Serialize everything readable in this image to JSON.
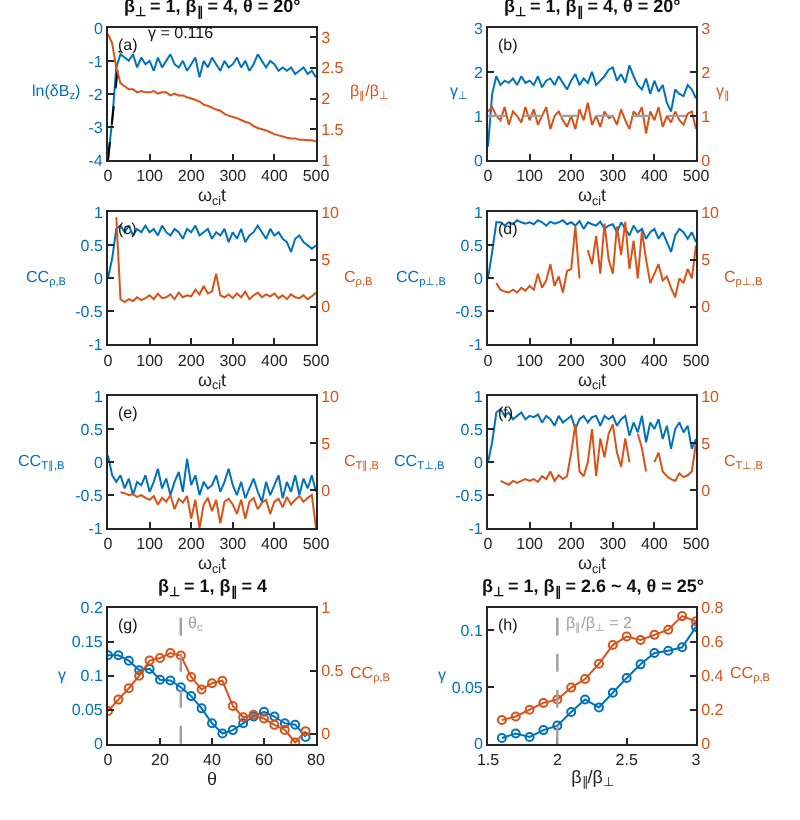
{
  "chart_data": [
    {
      "type": "line",
      "title": "β$_{⊥}$ = 1, β$_{∥}$ = 4, θ = 20°",
      "xlabel": "ω$_{ci}$t",
      "ylabel": "ln(δB$_{z}$)",
      "y2label": "β$_{∥}$/β$_{⊥}$",
      "annotations": [
        "(a)",
        {
          "text": "γ = 0.116",
          "x": 28,
          "y": -0.7
        }
      ],
      "x": [
        0,
        10,
        20,
        30,
        40,
        50,
        60,
        70,
        80,
        90,
        100,
        110,
        120,
        130,
        140,
        150,
        160,
        170,
        180,
        190,
        200,
        210,
        220,
        230,
        240,
        250,
        260,
        270,
        280,
        290,
        300,
        310,
        320,
        330,
        340,
        350,
        360,
        370,
        380,
        390,
        400,
        410,
        420,
        430,
        440,
        450,
        460,
        470,
        480,
        490,
        500
      ],
      "xlim": [
        0,
        500
      ],
      "xticks": [
        0,
        100,
        200,
        300,
        400,
        500
      ],
      "ylim": [
        -4,
        0
      ],
      "yticks": [
        -4,
        -3,
        -2,
        -1,
        0
      ],
      "y2lim": [
        1,
        3.15
      ],
      "y2ticks": [
        1,
        1.5,
        2,
        2.5,
        3
      ],
      "marker": "none",
      "line_style": "solid",
      "series": [
        {
          "color": "#0072bd",
          "values": [
            -4,
            -2.8,
            -1.2,
            -0.8,
            -0.9,
            -1.0,
            -0.8,
            -1.2,
            -0.9,
            -1.1,
            -1.0,
            -1.3,
            -0.9,
            -1.2,
            -1.0,
            -0.8,
            -1.1,
            -1.2,
            -1.0,
            -1.3,
            -1.1,
            -0.9,
            -1.5,
            -1.0,
            -1.2,
            -0.9,
            -1.1,
            -1.3,
            -1.0,
            -1.2,
            -1.1,
            -0.9,
            -1.2,
            -1.0,
            -1.3,
            -1.1,
            -0.8,
            -1.0,
            -1.2,
            -1.0,
            -1.1,
            -1.3,
            -1.2,
            -1.3,
            -1.2,
            -1.4,
            -1.3,
            -1.2,
            -1.4,
            -1.3,
            -1.5
          ]
        },
        {
          "color": "#d95319",
          "axis": "y2",
          "values": [
            3.05,
            2.9,
            2.5,
            2.25,
            2.2,
            2.15,
            2.15,
            2.1,
            2.12,
            2.1,
            2.1,
            2.12,
            2.08,
            2.1,
            2.1,
            2.05,
            2.08,
            2.05,
            2.05,
            2.02,
            2.0,
            1.98,
            1.95,
            1.9,
            1.88,
            1.85,
            1.82,
            1.8,
            1.75,
            1.72,
            1.7,
            1.68,
            1.65,
            1.62,
            1.6,
            1.55,
            1.52,
            1.5,
            1.48,
            1.45,
            1.42,
            1.4,
            1.38,
            1.36,
            1.35,
            1.35,
            1.33,
            1.33,
            1.32,
            1.32,
            1.3
          ]
        },
        {
          "type": "line",
          "color": "#000000",
          "line_style": "dashed",
          "x": [
            0,
            28
          ],
          "values": [
            -4,
            -0.7
          ]
        }
      ]
    },
    {
      "type": "line",
      "title": "β$_{⊥}$ = 1, β$_{∥}$ = 4, θ = 20°",
      "xlabel": "ω$_{ci}$t",
      "ylabel": "γ$_{⊥}$",
      "y2label": "γ$_{∥}$",
      "annotations": [
        "(b)"
      ],
      "x": [
        0,
        10,
        20,
        30,
        40,
        50,
        60,
        70,
        80,
        90,
        100,
        110,
        120,
        130,
        140,
        150,
        160,
        170,
        180,
        190,
        200,
        210,
        220,
        230,
        240,
        250,
        260,
        270,
        280,
        290,
        300,
        310,
        320,
        330,
        340,
        350,
        360,
        370,
        380,
        390,
        400,
        410,
        420,
        430,
        440,
        450,
        460,
        470,
        480,
        490,
        500
      ],
      "xlim": [
        0,
        500
      ],
      "xticks": [
        0,
        100,
        200,
        300,
        400,
        500
      ],
      "ylim": [
        0,
        3
      ],
      "yticks": [
        0,
        1,
        2,
        3
      ],
      "y2lim": [
        0,
        3
      ],
      "y2ticks": [
        0,
        1,
        2,
        3
      ],
      "marker": "none",
      "line_style": "solid",
      "ref_lines": [
        {
          "axis": "y",
          "value": 1,
          "color": "#a0a0a0",
          "line_style": "dashed"
        }
      ],
      "series": [
        {
          "color": "#0072bd",
          "values": [
            0.3,
            1.5,
            1.9,
            1.7,
            1.8,
            1.75,
            1.85,
            1.7,
            1.9,
            1.75,
            1.8,
            1.7,
            1.9,
            1.65,
            1.8,
            1.85,
            1.7,
            1.9,
            1.75,
            1.6,
            1.8,
            1.95,
            1.7,
            1.85,
            1.75,
            2.0,
            1.7,
            1.8,
            1.9,
            2.05,
            2.1,
            1.8,
            1.95,
            1.75,
            2.15,
            1.9,
            1.7,
            1.6,
            1.85,
            1.5,
            1.8,
            1.55,
            1.7,
            1.3,
            1.1,
            1.6,
            1.5,
            1.45,
            1.7,
            1.6,
            1.4
          ]
        },
        {
          "color": "#d95319",
          "axis": "y2",
          "values": [
            1.1,
            1.2,
            1.0,
            0.9,
            1.2,
            0.8,
            1.1,
            1.0,
            0.85,
            1.2,
            0.9,
            1.15,
            0.8,
            1.0,
            1.2,
            0.7,
            1.0,
            1.1,
            0.9,
            0.75,
            1.0,
            0.7,
            1.15,
            0.9,
            1.3,
            0.8,
            1.0,
            0.75,
            1.1,
            0.95,
            1.0,
            0.8,
            1.15,
            0.9,
            0.7,
            1.1,
            1.0,
            1.2,
            0.6,
            1.1,
            0.9,
            1.2,
            0.75,
            1.0,
            0.85,
            1.1,
            0.9,
            0.8,
            1.05,
            1.1,
            0.7
          ]
        }
      ]
    },
    {
      "type": "line",
      "xlabel": "ω$_{ci}$t",
      "ylabel": "CC$_{ρ,B}$",
      "y2label": "C$_{ρ,B}$",
      "annotations": [
        "(c)"
      ],
      "x": [
        0,
        10,
        20,
        30,
        40,
        50,
        60,
        70,
        80,
        90,
        100,
        110,
        120,
        130,
        140,
        150,
        160,
        170,
        180,
        190,
        200,
        210,
        220,
        230,
        240,
        250,
        260,
        270,
        280,
        290,
        300,
        310,
        320,
        330,
        340,
        350,
        360,
        370,
        380,
        390,
        400,
        410,
        420,
        430,
        440,
        450,
        460,
        470,
        480,
        490,
        500
      ],
      "xlim": [
        0,
        500
      ],
      "xticks": [
        0,
        100,
        200,
        300,
        400,
        500
      ],
      "ylim": [
        -1,
        1
      ],
      "yticks": [
        -1,
        -0.5,
        0,
        0.5,
        1
      ],
      "y2lim": [
        -4,
        10
      ],
      "y2ticks": [
        0,
        5,
        10
      ],
      "marker": "none",
      "line_style": "solid",
      "series": [
        {
          "color": "#0072bd",
          "values": [
            0,
            0.3,
            0.75,
            0.8,
            0.7,
            0.8,
            0.65,
            0.75,
            0.7,
            0.8,
            0.7,
            0.75,
            0.65,
            0.8,
            0.7,
            0.65,
            0.75,
            0.7,
            0.6,
            0.75,
            0.7,
            0.8,
            0.65,
            0.7,
            0.75,
            0.6,
            0.7,
            0.65,
            0.75,
            0.55,
            0.7,
            0.6,
            0.75,
            0.55,
            0.65,
            0.7,
            0.8,
            0.7,
            0.6,
            0.75,
            0.65,
            0.7,
            0.6,
            0.55,
            0.4,
            0.6,
            0.65,
            0.55,
            0.5,
            0.45,
            0.5
          ]
        },
        {
          "color": "#d95319",
          "axis": "y2",
          "values": [
            null,
            null,
            9.5,
            0.8,
            0.5,
            0.8,
            0.6,
            1.0,
            0.7,
            0.9,
            1.2,
            0.8,
            1.4,
            0.9,
            1.0,
            1.3,
            0.8,
            1.5,
            1.0,
            1.2,
            1.1,
            1.8,
            1.3,
            2.2,
            1.4,
            1.6,
            3.5,
            1.2,
            1.0,
            1.3,
            0.9,
            1.4,
            1.0,
            1.6,
            0.8,
            1.2,
            1.5,
            1.0,
            1.3,
            1.1,
            1.4,
            0.9,
            1.2,
            0.8,
            1.3,
            1.0,
            0.9,
            1.2,
            0.8,
            1.1,
            1.5
          ]
        }
      ]
    },
    {
      "type": "line",
      "xlabel": "ω$_{ci}$t",
      "ylabel": "CC$_{p⊥,B}$",
      "y2label": "C$_{p⊥,B}$",
      "annotations": [
        "(d)"
      ],
      "x": [
        0,
        10,
        20,
        30,
        40,
        50,
        60,
        70,
        80,
        90,
        100,
        110,
        120,
        130,
        140,
        150,
        160,
        170,
        180,
        190,
        200,
        210,
        220,
        230,
        240,
        250,
        260,
        270,
        280,
        290,
        300,
        310,
        320,
        330,
        340,
        350,
        360,
        370,
        380,
        390,
        400,
        410,
        420,
        430,
        440,
        450,
        460,
        470,
        480,
        490,
        500
      ],
      "xlim": [
        0,
        500
      ],
      "xticks": [
        0,
        100,
        200,
        300,
        400,
        500
      ],
      "ylim": [
        -1,
        1
      ],
      "yticks": [
        -1,
        -0.5,
        0,
        0.5,
        1
      ],
      "y2lim": [
        -4,
        10
      ],
      "y2ticks": [
        0,
        5,
        10
      ],
      "marker": "none",
      "line_style": "solid",
      "series": [
        {
          "color": "#0072bd",
          "values": [
            0,
            0.4,
            0.85,
            0.85,
            0.8,
            0.85,
            0.82,
            0.88,
            0.85,
            0.83,
            0.85,
            0.82,
            0.88,
            0.85,
            0.8,
            0.86,
            0.83,
            0.85,
            0.88,
            0.82,
            0.85,
            0.8,
            0.87,
            0.75,
            0.85,
            0.82,
            0.8,
            0.86,
            0.75,
            0.8,
            0.82,
            0.7,
            0.85,
            0.75,
            0.65,
            0.8,
            0.7,
            0.75,
            0.6,
            0.7,
            0.75,
            0.6,
            0.7,
            0.55,
            0.4,
            0.65,
            0.75,
            0.7,
            0.6,
            0.7,
            0.55
          ]
        },
        {
          "color": "#d95319",
          "axis": "y2",
          "values": [
            null,
            null,
            2.5,
            1.8,
            1.6,
            1.5,
            1.8,
            1.5,
            2.0,
            1.7,
            2.2,
            1.8,
            3.5,
            2.0,
            2.8,
            4.5,
            2.2,
            3.2,
            1.5,
            3.8,
            4.0,
            8.5,
            3.0,
            null,
            6.0,
            4.5,
            7.5,
            3.5,
            8.8,
            5.0,
            3.5,
            8.5,
            5.5,
            9.0,
            4.0,
            7.0,
            3.0,
            8.0,
            5.0,
            2.5,
            3.5,
            4.5,
            2.8,
            3.2,
            2.0,
            1.0,
            3.0,
            2.5,
            4.0,
            3.0,
            6.5
          ]
        }
      ]
    },
    {
      "type": "line",
      "xlabel": "ω$_{ci}$t",
      "ylabel": "CC$_{T∥,B}$",
      "y2label": "C$_{T∥,B}$",
      "annotations": [
        "(e)"
      ],
      "x": [
        0,
        10,
        20,
        30,
        40,
        50,
        60,
        70,
        80,
        90,
        100,
        110,
        120,
        130,
        140,
        150,
        160,
        170,
        180,
        190,
        200,
        210,
        220,
        230,
        240,
        250,
        260,
        270,
        280,
        290,
        300,
        310,
        320,
        330,
        340,
        350,
        360,
        370,
        380,
        390,
        400,
        410,
        420,
        430,
        440,
        450,
        460,
        470,
        480,
        490,
        500
      ],
      "xlim": [
        0,
        500
      ],
      "xticks": [
        0,
        100,
        200,
        300,
        400,
        500
      ],
      "ylim": [
        -1,
        1
      ],
      "yticks": [
        -1,
        -0.5,
        0,
        0.5,
        1
      ],
      "y2lim": [
        -4,
        10
      ],
      "y2ticks": [
        0,
        5,
        10
      ],
      "marker": "none",
      "line_style": "solid",
      "series": [
        {
          "color": "#0072bd",
          "values": [
            0.1,
            -0.2,
            -0.3,
            -0.2,
            -0.4,
            -0.25,
            -0.5,
            -0.3,
            -0.35,
            -0.2,
            -0.45,
            -0.3,
            -0.1,
            -0.4,
            -0.25,
            -0.5,
            -0.3,
            -0.15,
            -0.45,
            0.05,
            -0.35,
            -0.2,
            -0.5,
            -0.3,
            -0.4,
            -0.35,
            -0.2,
            -0.45,
            -0.3,
            -0.1,
            -0.35,
            -0.5,
            -0.3,
            -0.55,
            -0.4,
            -0.25,
            -0.45,
            -0.6,
            -0.3,
            -0.5,
            -0.35,
            -0.2,
            -0.55,
            -0.3,
            -0.45,
            -0.2,
            -0.5,
            -0.25,
            -0.4,
            -0.2,
            -0.45
          ]
        },
        {
          "color": "#d95319",
          "axis": "y2",
          "values": [
            null,
            null,
            null,
            -0.2,
            -0.3,
            -0.5,
            -0.4,
            -0.7,
            -0.5,
            -0.8,
            -1.0,
            -0.6,
            -1.5,
            -0.8,
            -1.2,
            -0.5,
            -2.0,
            -0.9,
            -1.3,
            -0.6,
            -3.0,
            -1.0,
            -4.0,
            -1.5,
            -0.8,
            -2.2,
            -1.0,
            -3.5,
            -1.2,
            -0.9,
            -1.5,
            -2.5,
            -1.0,
            -3.0,
            -1.2,
            -0.8,
            -2.0,
            -1.3,
            -1.0,
            -2.5,
            -1.2,
            -0.9,
            -1.8,
            -0.7,
            -1.5,
            -1.0,
            -0.6,
            -1.2,
            -0.8,
            -0.5,
            -4.0
          ]
        }
      ]
    },
    {
      "type": "line",
      "xlabel": "ω$_{ci}$t",
      "ylabel": "CC$_{T⊥,B}$",
      "y2label": "C$_{T⊥,B}$",
      "annotations": [
        "(f)"
      ],
      "x": [
        0,
        10,
        20,
        30,
        40,
        50,
        60,
        70,
        80,
        90,
        100,
        110,
        120,
        130,
        140,
        150,
        160,
        170,
        180,
        190,
        200,
        210,
        220,
        230,
        240,
        250,
        260,
        270,
        280,
        290,
        300,
        310,
        320,
        330,
        340,
        350,
        360,
        370,
        380,
        390,
        400,
        410,
        420,
        430,
        440,
        450,
        460,
        470,
        480,
        490,
        500
      ],
      "xlim": [
        0,
        500
      ],
      "xticks": [
        0,
        100,
        200,
        300,
        400,
        500
      ],
      "ylim": [
        -1,
        1
      ],
      "yticks": [
        -1,
        -0.5,
        0,
        0.5,
        1
      ],
      "y2lim": [
        -4,
        10
      ],
      "y2ticks": [
        0,
        5,
        10
      ],
      "marker": "none",
      "line_style": "solid",
      "series": [
        {
          "color": "#0072bd",
          "values": [
            0,
            0.3,
            0.75,
            0.8,
            0.7,
            0.75,
            0.65,
            0.7,
            0.75,
            0.65,
            0.7,
            0.68,
            0.72,
            0.6,
            0.7,
            0.65,
            0.55,
            0.7,
            0.6,
            0.65,
            0.7,
            0.5,
            0.65,
            0.7,
            0.6,
            0.68,
            0.7,
            0.55,
            0.7,
            0.65,
            0.7,
            0.55,
            0.65,
            0.7,
            0.4,
            0.6,
            0.45,
            0.7,
            0.3,
            0.6,
            0.5,
            0.65,
            0.35,
            0.55,
            0.2,
            0.5,
            0.6,
            0.45,
            0.55,
            0.2,
            0.35
          ]
        },
        {
          "color": "#d95319",
          "axis": "y2",
          "values": [
            null,
            null,
            null,
            1.0,
            0.8,
            0.6,
            1.0,
            0.8,
            1.0,
            1.2,
            1.0,
            1.2,
            0.9,
            1.5,
            1.2,
            2.0,
            1.0,
            1.6,
            1.2,
            1.5,
            4.0,
            7.0,
            2.0,
            1.5,
            3.0,
            6.5,
            1.5,
            5.5,
            3.5,
            6.0,
            7.0,
            4.0,
            2.5,
            5.5,
            3.0,
            null,
            6.0,
            4.5,
            2.0,
            null,
            3.0,
            4.0,
            2.0,
            1.5,
            1.2,
            1.0,
            1.8,
            1.4,
            1.6,
            2.0,
            5.0
          ]
        }
      ]
    },
    {
      "type": "line",
      "title": "β$_{⊥}$ = 1, β$_{∥}$ = 4",
      "xlabel": "θ",
      "ylabel": "γ",
      "y2label": "CC$_{ρ,B}$",
      "annotations": [
        "(g)"
      ],
      "x": [
        0,
        4,
        8,
        12,
        16,
        20,
        24,
        28,
        32,
        36,
        40,
        44,
        48,
        52,
        56,
        60,
        64,
        68,
        72,
        76
      ],
      "xlim": [
        0,
        80
      ],
      "xticks": [
        0,
        20,
        40,
        60,
        80
      ],
      "ylim": [
        0,
        0.2
      ],
      "yticks": [
        0,
        0.05,
        0.1,
        0.15,
        0.2
      ],
      "y2lim": [
        -0.08,
        1
      ],
      "y2ticks": [
        0,
        0.5,
        1
      ],
      "marker": "circle",
      "line_style": "solid",
      "ref_lines": [
        {
          "axis": "x",
          "value": 28,
          "label": "θ$_{c}$",
          "color": "#a0a0a0",
          "line_style": "dashed"
        }
      ],
      "series": [
        {
          "color": "#0072bd",
          "values": [
            0.13,
            0.13,
            0.122,
            0.108,
            0.11,
            0.094,
            0.093,
            0.083,
            0.07,
            0.052,
            0.03,
            0.015,
            0.02,
            0.03,
            0.04,
            0.047,
            0.04,
            0.03,
            0.028,
            0.01
          ]
        },
        {
          "color": "#d95319",
          "axis": "y2",
          "values": [
            0.18,
            0.27,
            0.36,
            0.46,
            0.58,
            0.6,
            0.64,
            0.62,
            0.45,
            0.35,
            0.4,
            0.42,
            0.22,
            0.13,
            0.15,
            0.12,
            0.07,
            0.03,
            -0.07,
            0.02
          ]
        }
      ]
    },
    {
      "type": "line",
      "title": "β$_{⊥}$ = 1, β$_{∥}$ = 2.6 ~ 4, θ = 25°",
      "xlabel": "β$_{∥}$/β$_{⊥}$",
      "ylabel": "γ",
      "y2label": "CC$_{ρ,B}$",
      "annotations": [
        "(h)"
      ],
      "x": [
        1.6,
        1.7,
        1.8,
        1.9,
        2.0,
        2.1,
        2.2,
        2.3,
        2.4,
        2.5,
        2.6,
        2.7,
        2.8,
        2.9,
        3.0
      ],
      "xlim": [
        1.5,
        3
      ],
      "xticks": [
        1.5,
        2,
        2.5,
        3
      ],
      "ylim": [
        0,
        0.12
      ],
      "yticks": [
        0,
        0.05,
        0.1
      ],
      "y2lim": [
        0,
        0.8
      ],
      "y2ticks": [
        0,
        0.2,
        0.4,
        0.6,
        0.8
      ],
      "marker": "circle",
      "line_style": "solid",
      "ref_lines": [
        {
          "axis": "x",
          "value": 2,
          "label": "β$_{∥}$/β$_{⊥}$ = 2",
          "color": "#a0a0a0",
          "line_style": "dashed"
        }
      ],
      "series": [
        {
          "color": "#0072bd",
          "values": [
            0.005,
            0.009,
            0.006,
            0.012,
            0.016,
            0.028,
            0.039,
            0.032,
            0.045,
            0.058,
            0.07,
            0.08,
            0.082,
            0.085,
            0.103
          ]
        },
        {
          "color": "#d95319",
          "axis": "y2",
          "values": [
            0.14,
            0.16,
            0.2,
            0.24,
            0.26,
            0.33,
            0.38,
            0.47,
            0.58,
            0.63,
            0.61,
            0.64,
            0.67,
            0.75,
            0.72
          ]
        }
      ]
    }
  ]
}
